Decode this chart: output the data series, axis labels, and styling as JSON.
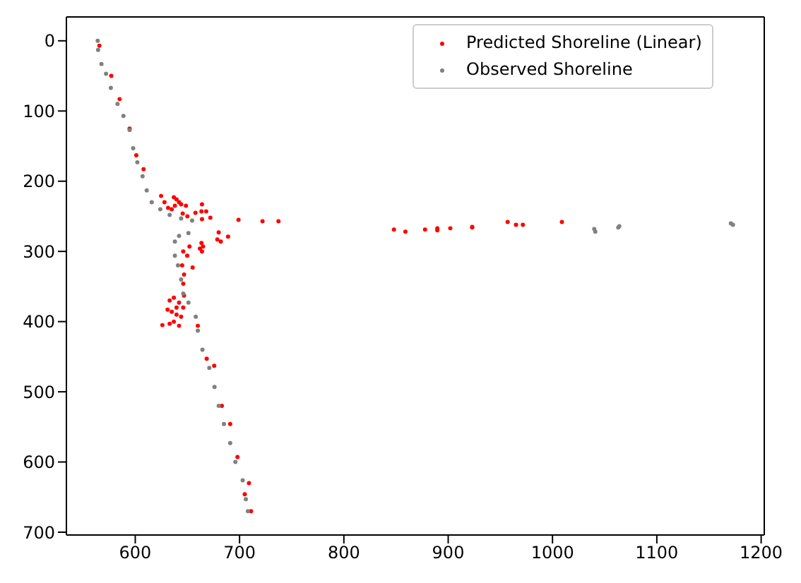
{
  "chart_data": {
    "type": "scatter",
    "xlim": [
      534,
      1203
    ],
    "ylim": [
      704,
      -34
    ],
    "xticks": [
      600,
      700,
      800,
      900,
      1000,
      1100,
      1200
    ],
    "yticks": [
      0,
      100,
      200,
      300,
      400,
      500,
      600,
      700
    ],
    "grid": false,
    "legend": "top right",
    "marker": "circle",
    "series": [
      {
        "name": "Predicted Shoreline (Linear)",
        "color": "#ff0000",
        "x": [
          565.6,
          577,
          585,
          594.6,
          601,
          608,
          624.8,
          628,
          631.5,
          635,
          637,
          639.6,
          642,
          638,
          644,
          648.6,
          645.5,
          650,
          657.7,
          664,
          663.5,
          668,
          672,
          664,
          699,
          722,
          737.3,
          848,
          859,
          877.8,
          889.6,
          889.6,
          902,
          923,
          923,
          957,
          965,
          971.6,
          1009,
          680,
          678.7,
          682,
          689,
          663.5,
          662,
          665,
          664,
          652,
          646,
          649.8,
          655,
          645,
          646.8,
          646,
          646.8,
          642,
          637,
          633,
          631,
          635,
          639.6,
          644,
          637,
          633,
          642,
          626,
          646,
          639.6,
          660,
          668.5,
          675.7,
          683,
          691,
          698,
          705,
          709,
          711
        ],
        "values": [
          7,
          50,
          83,
          125,
          163,
          183,
          221,
          230,
          238,
          240,
          223,
          226,
          230,
          235,
          233,
          235,
          246,
          250,
          245,
          233,
          243,
          243,
          252,
          254,
          255,
          257,
          257,
          269,
          272,
          269,
          267,
          270,
          267,
          265,
          266,
          258,
          262,
          262,
          258,
          273,
          283,
          286,
          279,
          288,
          296,
          293,
          300,
          293,
          300,
          306,
          323,
          320,
          333,
          346,
          363,
          373,
          366,
          370,
          383,
          386,
          390,
          393,
          400,
          403,
          406,
          405,
          380,
          380,
          406,
          453,
          463,
          520,
          546,
          593,
          646,
          630,
          670
        ]
      },
      {
        "name": "Observed Shoreline",
        "color": "#808080",
        "x": [
          564,
          564.4,
          567.6,
          572,
          576.6,
          583,
          588.7,
          594.6,
          598,
          602,
          607,
          611,
          615.8,
          624,
          633,
          644,
          654.5,
          651,
          642,
          638,
          638,
          641,
          644,
          646,
          651,
          658,
          660,
          664.4,
          671,
          676,
          680,
          685,
          691,
          696,
          703,
          706,
          708,
          1040,
          1041,
          1063,
          1064,
          1171,
          1173
        ],
        "values": [
          0,
          13,
          33,
          47,
          67,
          90,
          107,
          127,
          153,
          173,
          193,
          213,
          230,
          240,
          248,
          253,
          256,
          274,
          278,
          286,
          306,
          320,
          340,
          360,
          373,
          393,
          413,
          440,
          466,
          493,
          520,
          546,
          573,
          600,
          626,
          653,
          670,
          268,
          272,
          266,
          264,
          260,
          262
        ]
      }
    ]
  }
}
